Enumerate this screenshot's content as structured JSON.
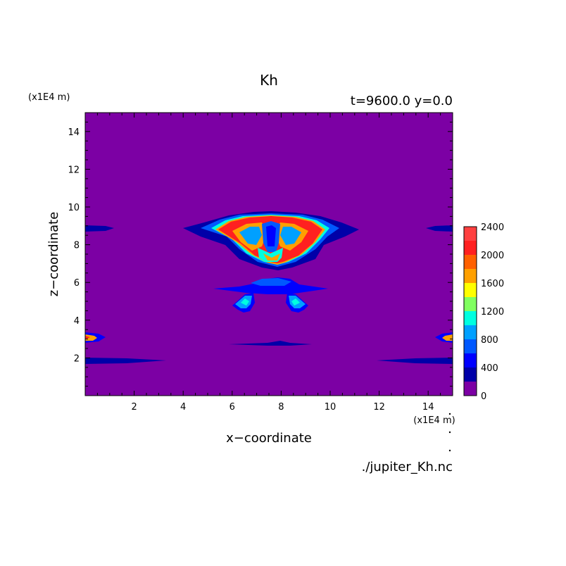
{
  "chart_data": {
    "type": "heatmap",
    "title": "Kh",
    "subtitle": "t=9600.0 y=0.0",
    "xlabel": "x−coordinate",
    "ylabel": "z−coordinate",
    "x_unit": "(x1E4 m)",
    "y_unit": "(x1E4 m)",
    "xlim": [
      0,
      15
    ],
    "ylim": [
      0,
      15
    ],
    "x_ticks": [
      "2",
      "4",
      "6",
      "8",
      "10",
      "12",
      "14"
    ],
    "y_ticks": [
      "2",
      "4",
      "6",
      "8",
      "10",
      "12",
      "14"
    ],
    "colorbar": {
      "tick_labels": [
        "0",
        "400",
        "800",
        "1200",
        "1600",
        "2000",
        "2400"
      ],
      "levels": [
        0,
        200,
        400,
        600,
        800,
        1000,
        1200,
        1400,
        1600,
        1800,
        2000,
        2200,
        2400
      ],
      "colors": [
        "#7c00a4",
        "#0000a8",
        "#0000ff",
        "#0058ff",
        "#00a0ff",
        "#00ffe0",
        "#80ff60",
        "#ffff00",
        "#ffa000",
        "#ff6000",
        "#ff2020",
        "#ff4040",
        "#ffb0b0"
      ]
    },
    "background_color": "#7c00a4",
    "grid": false
  },
  "footer": {
    "filename": "./jupiter_Kh.nc"
  }
}
